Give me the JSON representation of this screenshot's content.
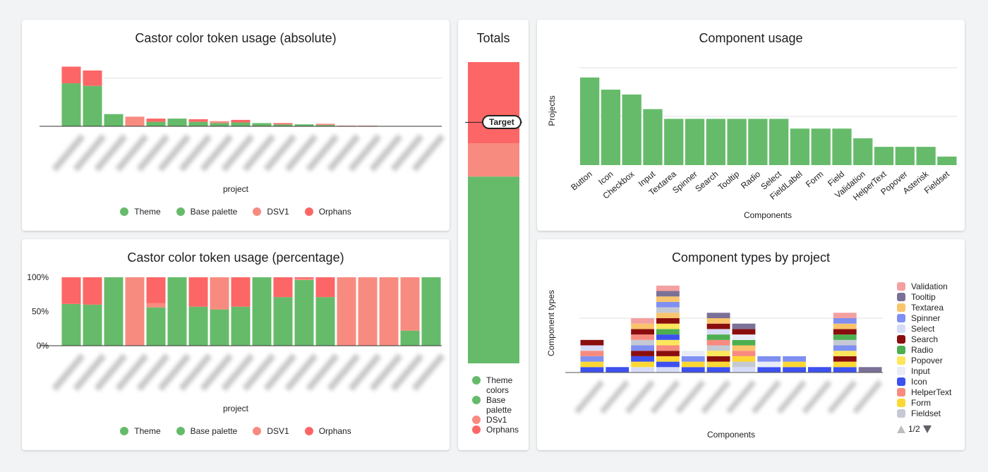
{
  "colors": {
    "green": "#66bb6a",
    "salmon": "#f88b7f",
    "red": "#fd6666",
    "grid": "#e0e0e0"
  },
  "abs_card": {
    "title": "Castor color token usage (absolute)",
    "xlabel": "project",
    "legend": [
      "Theme",
      "Base palette",
      "DSV1",
      "Orphans"
    ]
  },
  "pct_card": {
    "title": "Castor color token usage (percentage)",
    "xlabel": "project",
    "legend": [
      "Theme",
      "Base palette",
      "DSV1",
      "Orphans"
    ]
  },
  "totals_card": {
    "title": "Totals",
    "target_label": "Target",
    "legend": [
      "Theme colors",
      "Base palette",
      "DSv1",
      "Orphans"
    ]
  },
  "usage_card": {
    "title": "Component usage",
    "xlabel": "Components",
    "ylabel": "Projects"
  },
  "types_card": {
    "title": "Component types by project",
    "xlabel": "Components",
    "ylabel": "Component types",
    "legend": [
      "Validation",
      "Tooltip",
      "Textarea",
      "Spinner",
      "Select",
      "Search",
      "Radio",
      "Popover",
      "Input",
      "Icon",
      "HelperText",
      "Form",
      "Fieldset"
    ],
    "legend_colors": [
      "#f4a0a0",
      "#7b7196",
      "#f9c46b",
      "#7f8ff2",
      "#d6dcf7",
      "#8b0e0e",
      "#4caf50",
      "#fde65a",
      "#e8ecf7",
      "#3d51f0",
      "#f88b7f",
      "#fdd835",
      "#c5c9d3"
    ],
    "pager": "1/2"
  },
  "chart_data": [
    {
      "id": "absolute",
      "type": "bar",
      "stacked": true,
      "title": "Castor color token usage (absolute)",
      "xlabel": "project",
      "ylabel": "",
      "ylim": [
        0,
        110
      ],
      "gridlines": [
        75
      ],
      "series": [
        {
          "name": "Theme",
          "color": "#66bb6a",
          "values": [
            0,
            0,
            0,
            0,
            0,
            0,
            0,
            0,
            0,
            0,
            0,
            0,
            0,
            0,
            0,
            0,
            0,
            0
          ]
        },
        {
          "name": "Base palette",
          "color": "#66bb6a",
          "values": [
            67,
            63,
            19,
            0,
            7,
            12,
            7,
            5,
            6,
            5,
            3,
            3,
            2,
            0,
            0,
            0,
            0,
            0
          ]
        },
        {
          "name": "DSV1",
          "color": "#f88b7f",
          "values": [
            0,
            0,
            0,
            15,
            0,
            0,
            0,
            3,
            0,
            0,
            0,
            0,
            2,
            1,
            1,
            0,
            0,
            0
          ]
        },
        {
          "name": "Orphans",
          "color": "#fd6666",
          "values": [
            26,
            24,
            0,
            0,
            5,
            0,
            4,
            0,
            4,
            0,
            2,
            0,
            0,
            0,
            0,
            0,
            0,
            0
          ]
        }
      ]
    },
    {
      "id": "percentage",
      "type": "bar",
      "stacked": true,
      "title": "Castor color token usage (percentage)",
      "xlabel": "project",
      "ylim": [
        0,
        100
      ],
      "yticks": [
        "0%",
        "50%",
        "100%"
      ],
      "series": [
        {
          "name": "Theme",
          "color": "#66bb6a",
          "values": [
            0,
            0,
            0,
            0,
            0,
            0,
            0,
            0,
            0,
            0,
            0,
            0,
            0,
            0,
            0,
            0,
            0,
            0
          ]
        },
        {
          "name": "Base palette",
          "color": "#66bb6a",
          "values": [
            61,
            60,
            100,
            0,
            56,
            100,
            57,
            53,
            57,
            100,
            71,
            96,
            71,
            0,
            0,
            0,
            22,
            100
          ]
        },
        {
          "name": "DSV1",
          "color": "#f88b7f",
          "values": [
            0,
            0,
            0,
            100,
            6,
            0,
            0,
            47,
            0,
            0,
            0,
            2,
            0,
            100,
            100,
            100,
            78,
            0
          ]
        },
        {
          "name": "Orphans",
          "color": "#fd6666",
          "values": [
            39,
            40,
            0,
            0,
            38,
            0,
            43,
            0,
            43,
            0,
            29,
            2,
            29,
            0,
            0,
            0,
            0,
            0
          ]
        }
      ]
    },
    {
      "id": "totals",
      "type": "bar",
      "stacked": true,
      "title": "Totals",
      "target": 80,
      "series": [
        {
          "name": "Theme colors",
          "color": "#66bb6a",
          "values": [
            0
          ]
        },
        {
          "name": "Base palette",
          "color": "#66bb6a",
          "values": [
            62
          ]
        },
        {
          "name": "DSv1",
          "color": "#f88b7f",
          "values": [
            11
          ]
        },
        {
          "name": "Orphans",
          "color": "#fd6666",
          "values": [
            27
          ]
        }
      ]
    },
    {
      "id": "usage",
      "type": "bar",
      "title": "Component usage",
      "xlabel": "Components",
      "ylabel": "Projects",
      "categories": [
        "Button",
        "Icon",
        "Checkbox",
        "Input",
        "Textarea",
        "Spinner",
        "Search",
        "Tooltip",
        "Radio",
        "Select",
        "FieldLabel",
        "Form",
        "Field",
        "Validation",
        "HelperText",
        "Popover",
        "Asterisk",
        "Fieldset"
      ],
      "values": [
        18,
        15.5,
        14.5,
        11.5,
        9.5,
        9.5,
        9.5,
        9.5,
        9.5,
        9.5,
        7.5,
        7.5,
        7.5,
        5.5,
        3.75,
        3.75,
        3.75,
        1.75
      ],
      "ylim": [
        0,
        20
      ],
      "gridlines": [
        10,
        20
      ]
    },
    {
      "id": "types",
      "type": "bar",
      "stacked": true,
      "title": "Component types by project",
      "xlabel": "Components",
      "ylabel": "Component types",
      "ylim": [
        0,
        17
      ],
      "gridlines": [
        10
      ],
      "columns": [
        [
          "Icon",
          "Form",
          "Spinner",
          "HelperText",
          "Select",
          "Search"
        ],
        [
          "Icon"
        ],
        [
          "Select",
          "Form",
          "Icon",
          "Search",
          "Spinner",
          "Fieldset",
          "HelperText",
          "Search",
          "Textarea",
          "Validation"
        ],
        [
          "Select",
          "Icon",
          "Form",
          "Search",
          "HelperText",
          "Popover",
          "Icon",
          "Radio",
          "Popover",
          "Search",
          "Textarea",
          "Fieldset",
          "Spinner",
          "Textarea",
          "Tooltip",
          "Validation"
        ],
        [
          "Icon",
          "Form",
          "Spinner",
          "Input"
        ],
        [
          "Icon",
          "Form",
          "Search",
          "Popover",
          "Fieldset",
          "HelperText",
          "Radio",
          "Select",
          "Search",
          "Textarea",
          "Tooltip"
        ],
        [
          "Select",
          "Fieldset",
          "Form",
          "HelperText",
          "Textarea",
          "Radio",
          "Input",
          "Search",
          "Tooltip"
        ],
        [
          "Icon",
          "Input",
          "Spinner"
        ],
        [
          "Icon",
          "Form",
          "Spinner"
        ],
        [
          "Icon"
        ],
        [
          "Icon",
          "Form",
          "Search",
          "Popover",
          "Spinner",
          "Fieldset",
          "Radio",
          "Search",
          "Textarea",
          "Spinner",
          "Validation"
        ],
        [
          "Tooltip"
        ]
      ]
    }
  ]
}
